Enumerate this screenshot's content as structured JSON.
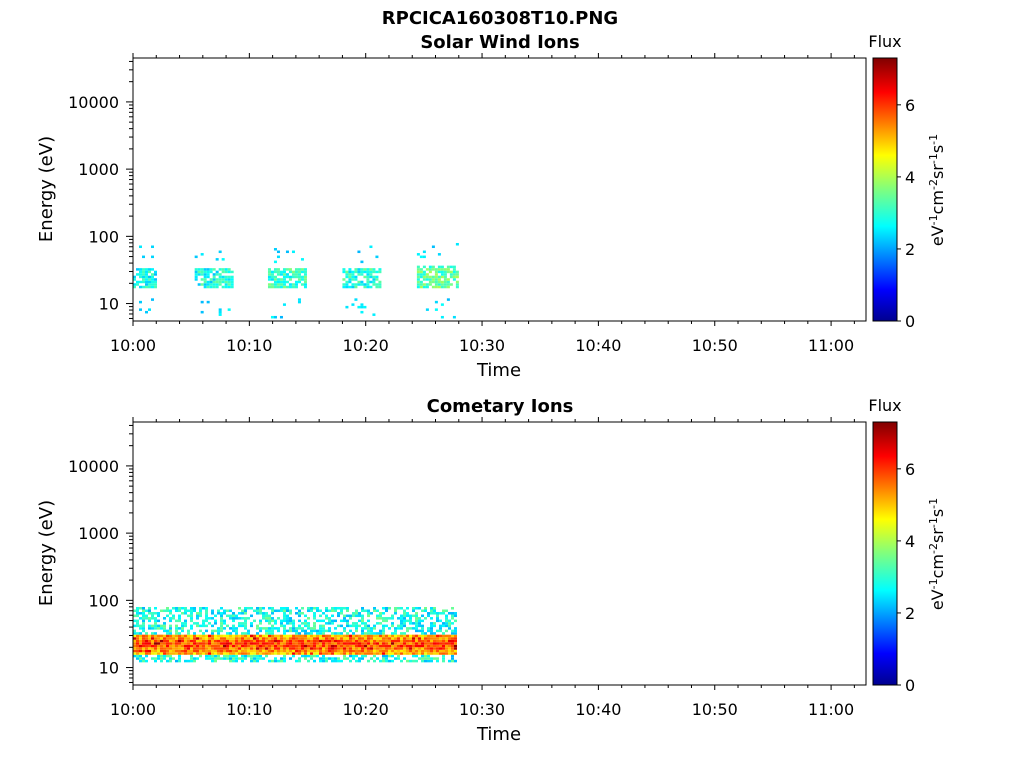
{
  "figure": {
    "title": "RPCICA160308T10.PNG"
  },
  "colorbar": {
    "label_top": "Flux",
    "unit_base": [
      "eV",
      "cm",
      "sr",
      "s"
    ],
    "unit_exp": [
      "-1",
      "-2",
      "-1",
      "-1"
    ],
    "ticks": [
      "0",
      "2",
      "4",
      "6"
    ],
    "range": [
      0,
      7.3
    ],
    "colormap": "jet"
  },
  "chart_data": [
    {
      "type": "heatmap",
      "title": "Solar Wind Ions",
      "xlabel": "Time",
      "ylabel": "Energy (eV)",
      "x_ticks": [
        "10:00",
        "10:10",
        "10:20",
        "10:30",
        "10:40",
        "10:50",
        "11:00"
      ],
      "x_range_minutes": [
        0,
        63
      ],
      "y_ticks": [
        "10",
        "100",
        "1000",
        "10000"
      ],
      "y_scale": "log",
      "y_range": [
        5.5,
        45000
      ],
      "data_end_minute": 28,
      "bursts": [
        {
          "start_min": 0.0,
          "end_min": 2.0,
          "e_low": 17,
          "e_high": 35,
          "flux": 2.8
        },
        {
          "start_min": 5.3,
          "end_min": 8.4,
          "e_low": 17,
          "e_high": 35,
          "flux": 2.9
        },
        {
          "start_min": 11.6,
          "end_min": 14.8,
          "e_low": 17,
          "e_high": 35,
          "flux": 3.1
        },
        {
          "start_min": 18.0,
          "end_min": 21.2,
          "e_low": 17,
          "e_high": 35,
          "flux": 3.0
        },
        {
          "start_min": 24.4,
          "end_min": 27.8,
          "e_low": 17,
          "e_high": 38,
          "flux": 3.4
        }
      ]
    },
    {
      "type": "heatmap",
      "title": "Cometary Ions",
      "xlabel": "Time",
      "ylabel": "Energy (eV)",
      "x_ticks": [
        "10:00",
        "10:10",
        "10:20",
        "10:30",
        "10:40",
        "10:50",
        "11:00"
      ],
      "x_range_minutes": [
        0,
        63
      ],
      "y_ticks": [
        "10",
        "100",
        "1000",
        "10000"
      ],
      "y_scale": "log",
      "y_range": [
        5.5,
        45000
      ],
      "data_end_minute": 27.8,
      "band": {
        "core_e_low": 16,
        "core_e_high": 32,
        "core_flux": 5.9,
        "halo_e_low": 12,
        "halo_e_high": 80,
        "halo_flux": 2.6,
        "peak_energy": 22
      }
    }
  ]
}
